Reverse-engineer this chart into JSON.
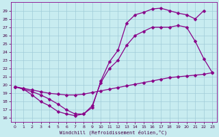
{
  "background_color": "#c8ecf0",
  "grid_color": "#a0ccd8",
  "line_color": "#880088",
  "markersize": 2.5,
  "linewidth": 0.9,
  "xlabel": "Windchill (Refroidissement éolien,°C)",
  "xlim": [
    -0.5,
    23.5
  ],
  "ylim": [
    15.5,
    30.0
  ],
  "yticks": [
    16,
    17,
    18,
    19,
    20,
    21,
    22,
    23,
    24,
    25,
    26,
    27,
    28,
    29
  ],
  "xticks": [
    0,
    1,
    2,
    3,
    4,
    5,
    6,
    7,
    8,
    9,
    10,
    11,
    12,
    13,
    14,
    15,
    16,
    17,
    18,
    19,
    20,
    21,
    22,
    23
  ],
  "series": [
    {
      "x": [
        0,
        1,
        2,
        3,
        4,
        5,
        6,
        7,
        8,
        9,
        10,
        11,
        12,
        13,
        14,
        15,
        16,
        17,
        18,
        19,
        20,
        21,
        22
      ],
      "y": [
        19.8,
        19.5,
        19.2,
        18.8,
        18.3,
        17.7,
        17.0,
        16.5,
        16.5,
        17.3,
        20.5,
        22.8,
        24.2,
        27.5,
        28.5,
        28.8,
        29.2,
        29.3,
        29.0,
        28.7,
        28.5,
        28.0,
        29.0
      ]
    },
    {
      "x": [
        0,
        1,
        2,
        3,
        4,
        5,
        6,
        7,
        8,
        9,
        10,
        11,
        12,
        13,
        14,
        15,
        16,
        17,
        18,
        19,
        20,
        21,
        22,
        23
      ],
      "y": [
        19.8,
        19.5,
        18.8,
        18.0,
        17.5,
        16.8,
        16.5,
        16.3,
        16.5,
        17.5,
        20.3,
        22.0,
        23.0,
        24.8,
        26.0,
        26.5,
        27.0,
        27.0,
        27.0,
        27.2,
        27.0,
        25.3,
        23.2,
        21.5
      ]
    },
    {
      "x": [
        0,
        1,
        2,
        3,
        4,
        5,
        6,
        7,
        8,
        9,
        10,
        11,
        12,
        13,
        14,
        15,
        16,
        17,
        18,
        19,
        20,
        21,
        22,
        23
      ],
      "y": [
        19.8,
        19.6,
        19.4,
        19.2,
        19.0,
        18.9,
        18.8,
        18.8,
        18.9,
        19.1,
        19.3,
        19.5,
        19.7,
        19.9,
        20.1,
        20.3,
        20.5,
        20.7,
        20.9,
        21.0,
        21.1,
        21.2,
        21.3,
        21.5
      ]
    }
  ]
}
